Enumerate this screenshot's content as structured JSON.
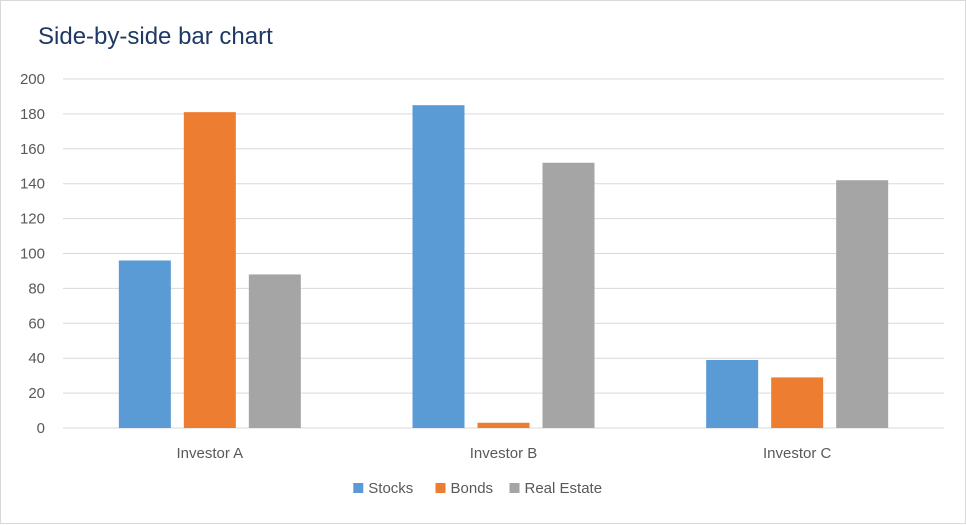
{
  "chart_data": {
    "type": "bar",
    "title": "Side-by-side bar chart",
    "categories": [
      "Investor A",
      "Investor B",
      "Investor C"
    ],
    "series": [
      {
        "name": "Stocks",
        "color": "#5b9bd5",
        "values": [
          96,
          185,
          39
        ]
      },
      {
        "name": "Bonds",
        "color": "#ed7d31",
        "values": [
          181,
          3,
          29
        ]
      },
      {
        "name": "Real Estate",
        "color": "#a5a5a5",
        "values": [
          88,
          152,
          142
        ]
      }
    ],
    "ylim": [
      0,
      200
    ],
    "yticks": [
      0,
      20,
      40,
      60,
      80,
      100,
      120,
      140,
      160,
      180,
      200
    ],
    "grid": true,
    "legend_position": "bottom",
    "xlabel": "",
    "ylabel": ""
  }
}
